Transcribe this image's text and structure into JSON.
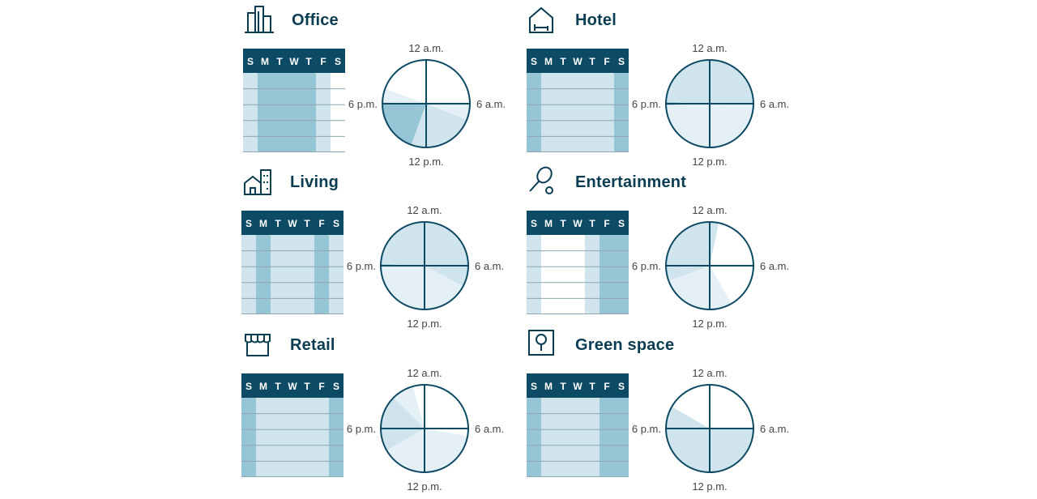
{
  "colors": {
    "dark": "#0d4a63",
    "mid": "#96c5d6",
    "light": "#cfe4ec",
    "pale": "#e4f0f5",
    "none": "#ffffff",
    "line": "#8fa7b0"
  },
  "day_letters": [
    "S",
    "M",
    "T",
    "W",
    "T",
    "F",
    "S"
  ],
  "clock_labels": {
    "top": "12 a.m.",
    "right": "6 a.m.",
    "bottom": "12 p.m.",
    "left": "6 p.m."
  },
  "panels": [
    {
      "id": "office",
      "title": "Office",
      "icon": "office-building-icon",
      "week": [
        "light",
        "mid",
        "mid",
        "mid",
        "mid",
        "light",
        "none"
      ],
      "sectors": [
        {
          "from": 0,
          "to": 90,
          "level": "none"
        },
        {
          "from": 90,
          "to": 112,
          "level": "pale"
        },
        {
          "from": 112,
          "to": 200,
          "level": "light"
        },
        {
          "from": 200,
          "to": 240,
          "level": "mid"
        },
        {
          "from": 240,
          "to": 270,
          "level": "mid"
        },
        {
          "from": 270,
          "to": 282,
          "level": "pale"
        },
        {
          "from": 282,
          "to": 290,
          "level": "pale"
        },
        {
          "from": 290,
          "to": 360,
          "level": "none"
        }
      ]
    },
    {
      "id": "hotel",
      "title": "Hotel",
      "icon": "hotel-bed-icon",
      "week": [
        "mid",
        "light",
        "light",
        "light",
        "light",
        "light",
        "mid"
      ],
      "sectors": [
        {
          "from": 0,
          "to": 90,
          "level": "light"
        },
        {
          "from": 90,
          "to": 118,
          "level": "pale"
        },
        {
          "from": 118,
          "to": 180,
          "level": "pale"
        },
        {
          "from": 180,
          "to": 268,
          "level": "pale"
        },
        {
          "from": 268,
          "to": 272,
          "level": "mid"
        },
        {
          "from": 272,
          "to": 360,
          "level": "light"
        }
      ]
    },
    {
      "id": "living",
      "title": "Living",
      "icon": "living-house-icon",
      "week": [
        "light",
        "mid",
        "light",
        "light",
        "light",
        "mid",
        "light"
      ],
      "sectors": [
        {
          "from": 0,
          "to": 90,
          "level": "light"
        },
        {
          "from": 90,
          "to": 118,
          "level": "light"
        },
        {
          "from": 118,
          "to": 180,
          "level": "pale"
        },
        {
          "from": 180,
          "to": 270,
          "level": "pale"
        },
        {
          "from": 270,
          "to": 272,
          "level": "mid"
        },
        {
          "from": 272,
          "to": 360,
          "level": "light"
        }
      ]
    },
    {
      "id": "entertainment",
      "title": "Entertainment",
      "icon": "racket-ball-icon",
      "week": [
        "light",
        "none",
        "none",
        "none",
        "light",
        "mid",
        "mid"
      ],
      "sectors": [
        {
          "from": 0,
          "to": 12,
          "level": "light"
        },
        {
          "from": 12,
          "to": 150,
          "level": "none"
        },
        {
          "from": 150,
          "to": 180,
          "level": "pale"
        },
        {
          "from": 180,
          "to": 250,
          "level": "pale"
        },
        {
          "from": 250,
          "to": 265,
          "level": "light"
        },
        {
          "from": 265,
          "to": 300,
          "level": "light"
        },
        {
          "from": 300,
          "to": 360,
          "level": "light"
        }
      ]
    },
    {
      "id": "retail",
      "title": "Retail",
      "icon": "storefront-icon",
      "week": [
        "mid",
        "light",
        "light",
        "light",
        "light",
        "light",
        "mid"
      ],
      "sectors": [
        {
          "from": 0,
          "to": 90,
          "level": "none"
        },
        {
          "from": 90,
          "to": 100,
          "level": "none"
        },
        {
          "from": 100,
          "to": 180,
          "level": "pale"
        },
        {
          "from": 180,
          "to": 240,
          "level": "pale"
        },
        {
          "from": 240,
          "to": 265,
          "level": "light"
        },
        {
          "from": 265,
          "to": 315,
          "level": "light"
        },
        {
          "from": 315,
          "to": 330,
          "level": "pale"
        },
        {
          "from": 330,
          "to": 345,
          "level": "pale"
        },
        {
          "from": 345,
          "to": 360,
          "level": "none"
        }
      ]
    },
    {
      "id": "green",
      "title": "Green space",
      "icon": "tree-sign-icon",
      "week": [
        "mid",
        "light",
        "light",
        "light",
        "light",
        "mid",
        "mid"
      ],
      "sectors": [
        {
          "from": 0,
          "to": 90,
          "level": "none"
        },
        {
          "from": 90,
          "to": 180,
          "level": "light"
        },
        {
          "from": 180,
          "to": 270,
          "level": "light"
        },
        {
          "from": 270,
          "to": 300,
          "level": "light"
        },
        {
          "from": 300,
          "to": 360,
          "level": "none"
        }
      ]
    }
  ]
}
